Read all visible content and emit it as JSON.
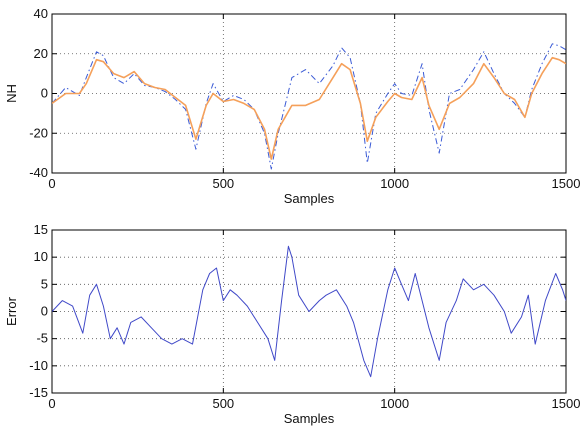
{
  "chart_data": [
    {
      "type": "line",
      "xlabel": "Samples",
      "ylabel": "NH",
      "xlim": [
        0,
        1500
      ],
      "ylim": [
        -40,
        40
      ],
      "xticks": [
        0,
        500,
        1000,
        1500
      ],
      "yticks": [
        -40,
        -20,
        0,
        20,
        40
      ],
      "grid": true,
      "series": [
        {
          "style": "dash-dot",
          "color": "#3b5bd6",
          "x": [
            0,
            40,
            80,
            100,
            130,
            150,
            180,
            210,
            240,
            270,
            300,
            330,
            360,
            390,
            420,
            450,
            470,
            500,
            530,
            560,
            590,
            620,
            640,
            660,
            700,
            740,
            780,
            820,
            845,
            870,
            900,
            920,
            945,
            980,
            1000,
            1020,
            1050,
            1080,
            1100,
            1130,
            1160,
            1190,
            1230,
            1260,
            1290,
            1320,
            1350,
            1380,
            1400,
            1430,
            1460,
            1480,
            1500
          ],
          "y": [
            -5,
            3,
            -1,
            8,
            21,
            19,
            8,
            5,
            10,
            4,
            3,
            1,
            -3,
            -8,
            -28,
            -5,
            5,
            -4,
            -1,
            -3,
            -8,
            -20,
            -38,
            -20,
            8,
            12,
            5,
            14,
            23,
            18,
            -5,
            -35,
            -10,
            0,
            5,
            0,
            -1,
            15,
            -8,
            -30,
            0,
            2,
            12,
            21,
            10,
            0,
            -5,
            -12,
            2,
            15,
            25,
            24,
            22
          ]
        },
        {
          "style": "solid",
          "color": "#f5a05a",
          "x": [
            0,
            40,
            80,
            100,
            130,
            150,
            180,
            210,
            240,
            270,
            300,
            330,
            360,
            390,
            420,
            450,
            470,
            500,
            530,
            560,
            590,
            620,
            640,
            660,
            700,
            740,
            780,
            820,
            845,
            870,
            900,
            920,
            945,
            980,
            1000,
            1020,
            1050,
            1080,
            1100,
            1130,
            1160,
            1190,
            1230,
            1260,
            1290,
            1320,
            1350,
            1380,
            1400,
            1430,
            1460,
            1480,
            1500
          ],
          "y": [
            -5,
            0,
            0,
            5,
            17,
            16,
            10,
            8,
            11,
            5,
            3,
            2,
            -2,
            -6,
            -23,
            -6,
            0,
            -4,
            -3,
            -5,
            -8,
            -18,
            -33,
            -18,
            -6,
            -6,
            -3,
            8,
            15,
            12,
            -5,
            -24,
            -12,
            -4,
            0,
            -2,
            -3,
            8,
            -6,
            -18,
            -5,
            -2,
            5,
            15,
            8,
            0,
            -3,
            -12,
            0,
            10,
            18,
            17,
            15
          ]
        }
      ]
    },
    {
      "type": "line",
      "xlabel": "Samples",
      "ylabel": "Error",
      "xlim": [
        0,
        1500
      ],
      "ylim": [
        -15,
        15
      ],
      "xticks": [
        0,
        500,
        1000,
        1500
      ],
      "yticks": [
        -15,
        -10,
        -5,
        0,
        5,
        10,
        15
      ],
      "grid": true,
      "series": [
        {
          "style": "solid",
          "color": "#4049c8",
          "x": [
            0,
            30,
            60,
            90,
            110,
            130,
            150,
            170,
            190,
            210,
            230,
            260,
            290,
            320,
            350,
            380,
            410,
            440,
            460,
            480,
            500,
            520,
            540,
            570,
            600,
            630,
            650,
            670,
            690,
            700,
            720,
            750,
            780,
            800,
            830,
            860,
            880,
            910,
            930,
            950,
            980,
            1000,
            1020,
            1040,
            1060,
            1080,
            1100,
            1130,
            1150,
            1180,
            1200,
            1230,
            1260,
            1290,
            1320,
            1340,
            1370,
            1390,
            1410,
            1440,
            1470,
            1490,
            1500
          ],
          "y": [
            0,
            2,
            1,
            -4,
            3,
            5,
            1,
            -5,
            -3,
            -6,
            -2,
            -1,
            -3,
            -5,
            -6,
            -5,
            -6,
            4,
            7,
            8,
            2,
            4,
            3,
            1,
            -2,
            -5,
            -9,
            2,
            12,
            10,
            3,
            0,
            2,
            3,
            4,
            1,
            -2,
            -9,
            -12,
            -5,
            4,
            8,
            5,
            2,
            7,
            2,
            -3,
            -9,
            -2,
            2,
            6,
            4,
            5,
            3,
            0,
            -4,
            -1,
            3,
            -6,
            2,
            7,
            4,
            2
          ]
        }
      ]
    }
  ]
}
